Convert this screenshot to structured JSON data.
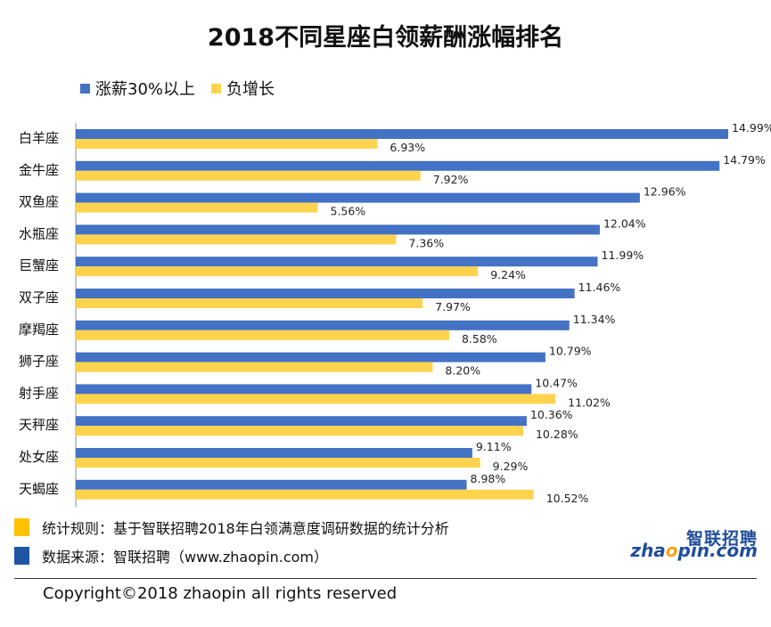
{
  "title": "2018不同星座白领薪酬涨幅排名",
  "legend": [
    {
      "label": "涨薪30%以上",
      "color": "#4472C4"
    },
    {
      "label": "负增长",
      "color": "#FFD34D"
    }
  ],
  "notes": [
    {
      "text": "统计规则：基于智联招聘2018年白领满意度调研数据的统计分析",
      "color": "#FFC000"
    },
    {
      "text": "数据来源：智联招聘（www.zhaopin.com）",
      "color": "#1F55A5"
    }
  ],
  "copyright": "Copyright©2018 zhaopin all rights reserved",
  "logo": {
    "cn": "智联招聘",
    "en_left": "zha",
    "en_o": "o",
    "en_right": "pin.com"
  },
  "chart_data": {
    "type": "bar",
    "orientation": "horizontal",
    "title": "2018不同星座白领薪酬涨幅排名",
    "categories": [
      "白羊座",
      "金牛座",
      "双鱼座",
      "水瓶座",
      "巨蟹座",
      "双子座",
      "摩羯座",
      "狮子座",
      "射手座",
      "天秤座",
      "处女座",
      "天蝎座"
    ],
    "series": [
      {
        "name": "涨薪30%以上",
        "color": "#4472C4",
        "values": [
          14.99,
          14.79,
          12.96,
          12.04,
          11.99,
          11.46,
          11.34,
          10.79,
          10.47,
          10.36,
          9.11,
          8.98
        ]
      },
      {
        "name": "负增长",
        "color": "#FFD34D",
        "values": [
          6.93,
          7.92,
          5.56,
          7.36,
          9.24,
          7.97,
          8.58,
          8.2,
          11.02,
          10.28,
          9.29,
          10.52
        ]
      }
    ],
    "value_format": "percent_2dp",
    "xlim": [
      0,
      15
    ],
    "grid": false,
    "legend_position": "top-left"
  }
}
